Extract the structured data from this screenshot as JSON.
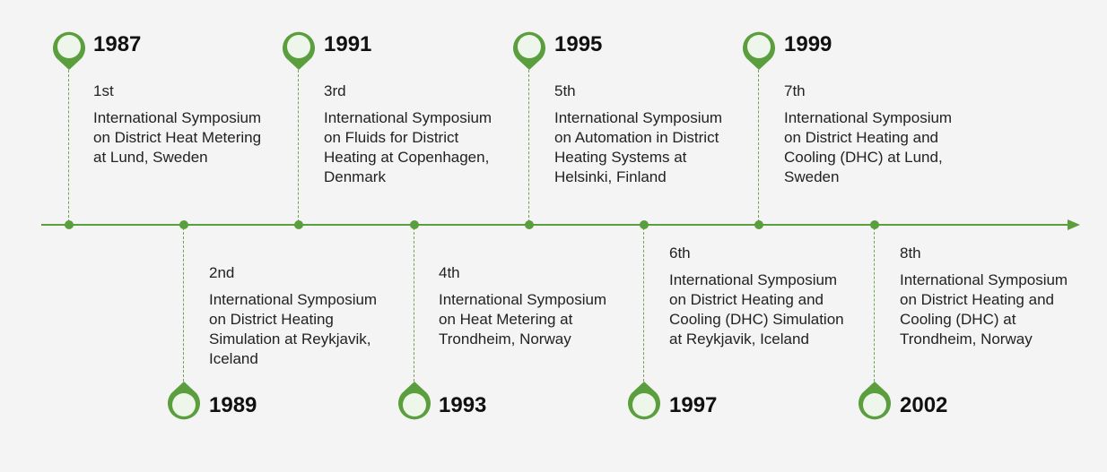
{
  "colors": {
    "accent": "#5a9e3e",
    "pin_fill": "#eef5ea",
    "background": "#f4f4f4"
  },
  "milestones": [
    {
      "year": "1987",
      "ordinal": "1st",
      "desc": "International Symposium on District Heat Metering at Lund, Sweden"
    },
    {
      "year": "1989",
      "ordinal": "2nd",
      "desc": "International Symposium on District Heating Simulation at Reykjavik, Iceland"
    },
    {
      "year": "1991",
      "ordinal": "3rd",
      "desc": "International Symposium on Fluids for District Heating at Copenhagen, Denmark"
    },
    {
      "year": "1993",
      "ordinal": "4th",
      "desc": "International Symposium on Heat Metering at Trondheim, Norway"
    },
    {
      "year": "1995",
      "ordinal": "5th",
      "desc": "International Symposium on Automation in District Heating Systems at Helsinki, Finland"
    },
    {
      "year": "1997",
      "ordinal": "6th",
      "desc": "International Symposium on District Heating and Cooling (DHC) Simulation at Reykjavik, Iceland"
    },
    {
      "year": "1999",
      "ordinal": "7th",
      "desc": "International Symposium on District Heating and Cooling (DHC) at Lund, Sweden"
    },
    {
      "year": "2002",
      "ordinal": "8th",
      "desc": "International Symposium on District Heating and Cooling (DHC) at Trondheim, Norway"
    }
  ]
}
